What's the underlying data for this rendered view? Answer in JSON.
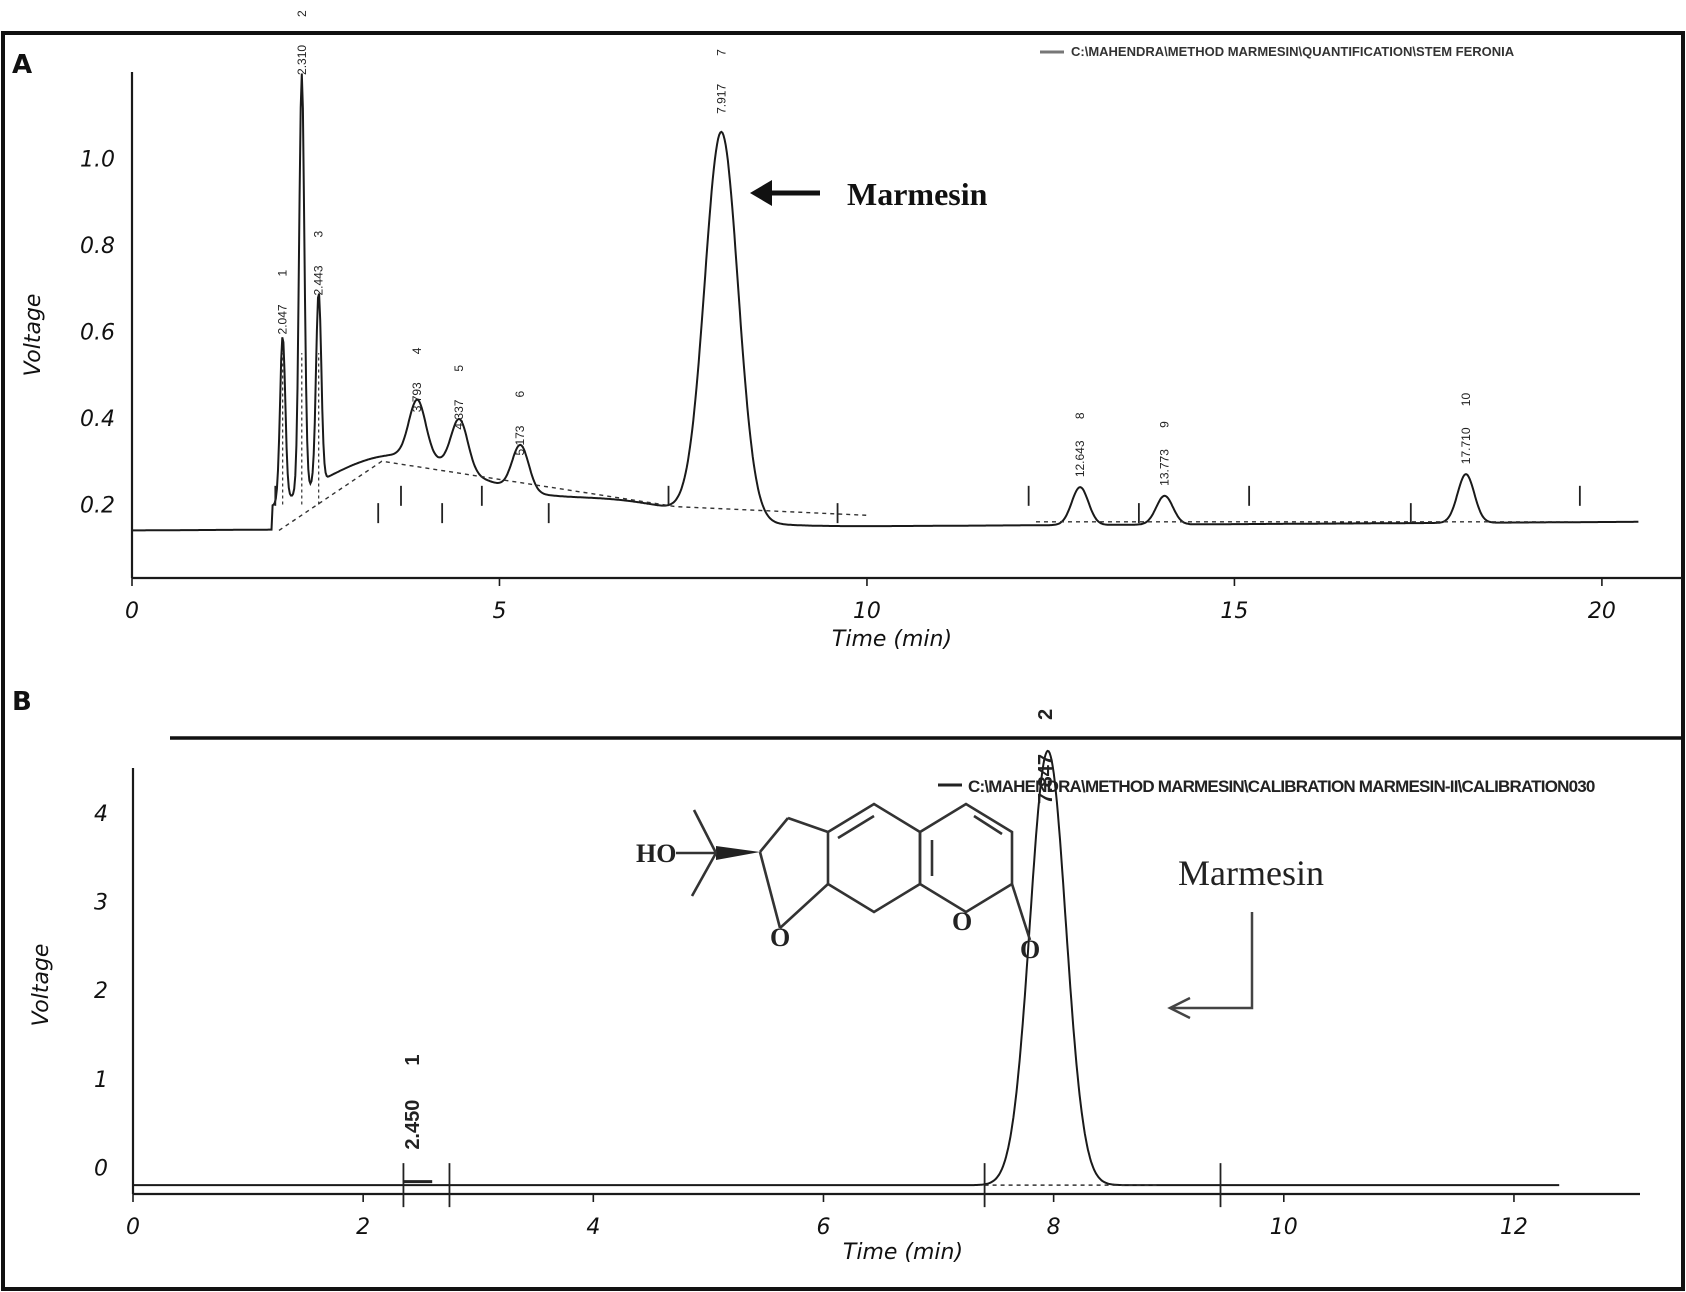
{
  "panels": {
    "a": {
      "label": "A"
    },
    "b": {
      "label": "B"
    }
  },
  "chart_data": [
    {
      "type": "line",
      "panel": "A",
      "legend": "C:\\MAHENDRA\\METHOD MARMESIN\\QUANTIFICATION\\STEM FERONIA",
      "xlabel": "Time (min)",
      "ylabel": "Voltage",
      "xlim": [
        0,
        20.6
      ],
      "ylim": [
        0.03,
        1.2
      ],
      "xticks": [
        "0",
        "5",
        "10",
        "15",
        "20"
      ],
      "yticks": [
        "0.2",
        "0.4",
        "0.6",
        "0.8",
        "1.0"
      ],
      "baseline_start": 0.14,
      "baseline_end": 0.16,
      "peaks": [
        {
          "id": "1",
          "rt": "2.047",
          "x": 2.05,
          "height": 0.57
        },
        {
          "id": "2",
          "rt": "2.310",
          "x": 2.31,
          "height": 1.17
        },
        {
          "id": "3",
          "rt": "2.443",
          "x": 2.54,
          "height": 0.66
        },
        {
          "id": "4",
          "rt": "3.793",
          "x": 3.88,
          "height": 0.39
        },
        {
          "id": "5",
          "rt": "4.337",
          "x": 4.45,
          "height": 0.35
        },
        {
          "id": "6",
          "rt": "5.173",
          "x": 5.28,
          "height": 0.29
        },
        {
          "id": "7",
          "rt": "7.917",
          "x": 8.02,
          "height": 1.08
        },
        {
          "id": "8",
          "rt": "12.643",
          "x": 12.9,
          "height": 0.24
        },
        {
          "id": "9",
          "rt": "13.773",
          "x": 14.05,
          "height": 0.22
        },
        {
          "id": "10",
          "rt": "17.710",
          "x": 18.15,
          "height": 0.27
        }
      ],
      "annotation": "Marmesin"
    },
    {
      "type": "line",
      "panel": "B",
      "legend": "C:\\MAHENDRA\\METHOD MARMESIN\\CALIBRATION MARMESIN-II\\CALIBRATION030",
      "xlabel": "Time (min)",
      "ylabel": "Voltage",
      "xlim": [
        0,
        12.6
      ],
      "ylim": [
        -0.3,
        4.8
      ],
      "xticks": [
        "0",
        "2",
        "4",
        "6",
        "8",
        "10",
        "12"
      ],
      "yticks": [
        "0",
        "1",
        "2",
        "3",
        "4"
      ],
      "baseline": -0.2,
      "peaks": [
        {
          "id": "1",
          "rt": "2.450",
          "x": 2.45,
          "height": -0.16
        },
        {
          "id": "2",
          "rt": "7.847",
          "x": 7.95,
          "height": 4.7
        }
      ],
      "annotation": "Marmesin",
      "structure_labels": [
        "HO",
        "O",
        "O",
        "O"
      ]
    }
  ]
}
